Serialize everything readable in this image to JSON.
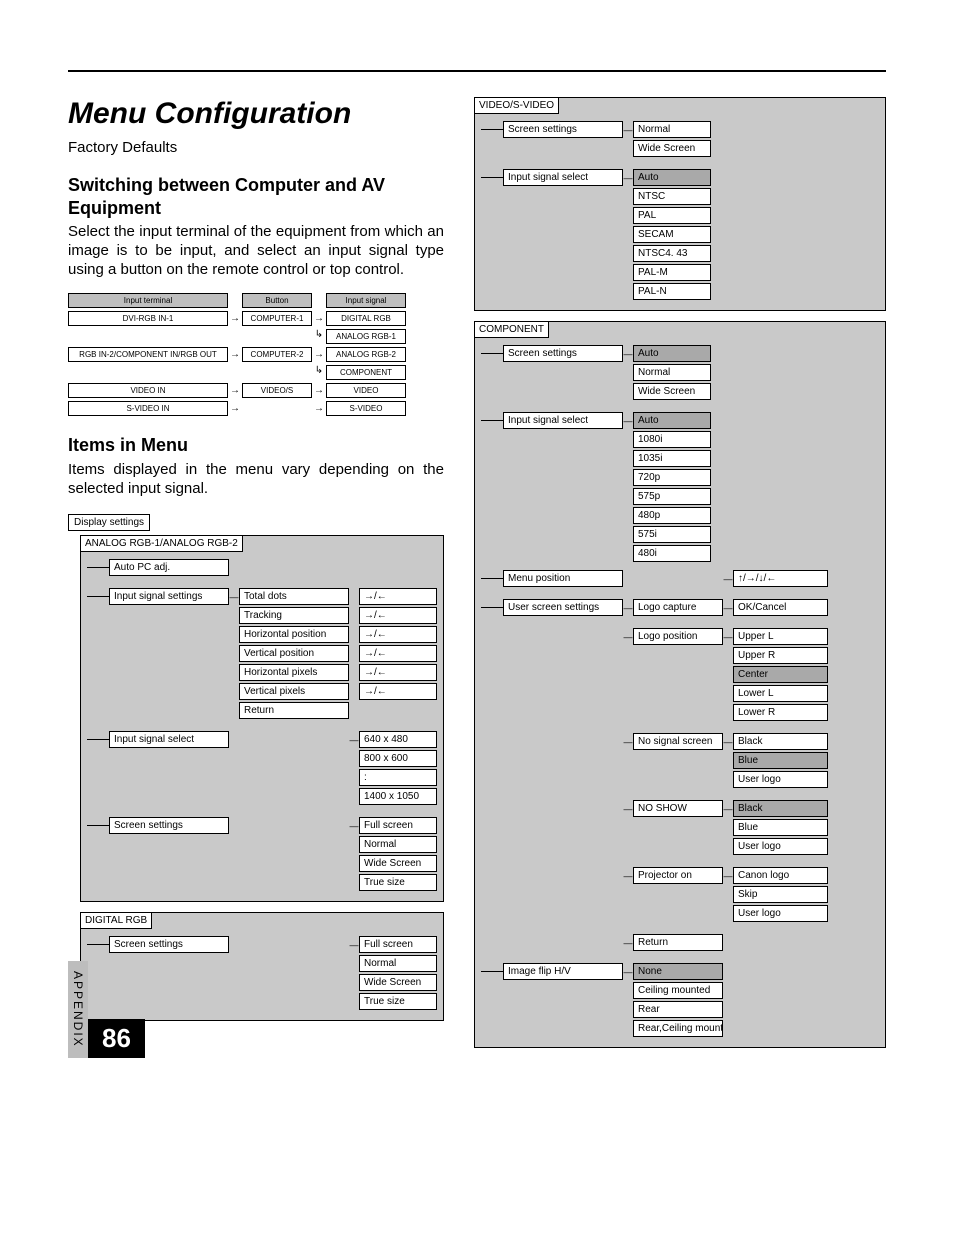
{
  "page": {
    "title": "Menu Configuration",
    "factory": "Factory Defaults",
    "switch_heading": "Switching between Computer and AV Equipment",
    "switch_body": "Select the input terminal of the equipment from which an image is to be input, and select an input signal type using a button on the remote control or top control.",
    "items_heading": "Items in Menu",
    "items_body": "Items displayed in the menu vary depending on the selected input signal.",
    "appendix": "APPENDIX",
    "number": "86"
  },
  "flow": {
    "headers": [
      "Input terminal",
      "Button",
      "Input signal"
    ],
    "rows": [
      {
        "term": "DVI-RGB IN-1",
        "btn": "COMPUTER-1",
        "sig": [
          "DIGITAL RGB",
          "ANALOG RGB-1"
        ]
      },
      {
        "term": "RGB IN-2/COMPONENT IN/RGB OUT",
        "btn": "COMPUTER-2",
        "sig": [
          "ANALOG RGB-2",
          "COMPONENT"
        ]
      },
      {
        "term": "VIDEO IN",
        "btn": "VIDEO/S",
        "sig": [
          "VIDEO"
        ]
      },
      {
        "term": "S-VIDEO IN",
        "btn": "",
        "sig": [
          "S-VIDEO"
        ]
      }
    ]
  },
  "display_settings_root": "Display settings",
  "panels": {
    "analog": {
      "title": "ANALOG RGB-1/ANALOG RGB-2",
      "auto_pc": "Auto PC adj.",
      "input_signal_settings": {
        "label": "Input signal settings",
        "items": [
          "Total dots",
          "Tracking",
          "Horizontal position",
          "Vertical position",
          "Horizontal pixels",
          "Vertical pixels",
          "Return"
        ],
        "arrows": "→/←"
      },
      "input_signal_select": {
        "label": "Input signal select",
        "items": [
          "640 x 480",
          "800 x 600",
          ":",
          "1400 x 1050"
        ]
      },
      "screen": {
        "label": "Screen settings",
        "items": [
          "Full screen",
          "Normal",
          "Wide Screen",
          "True size"
        ]
      }
    },
    "digital": {
      "title": "DIGITAL RGB",
      "screen": {
        "label": "Screen settings",
        "items": [
          "Full screen",
          "Normal",
          "Wide Screen",
          "True size"
        ]
      }
    },
    "video": {
      "title": "VIDEO/S-VIDEO",
      "screen": {
        "label": "Screen settings",
        "items": [
          "Normal",
          "Wide Screen"
        ]
      },
      "sig": {
        "label": "Input signal select",
        "items": [
          "Auto",
          "NTSC",
          "PAL",
          "SECAM",
          "NTSC4. 43",
          "PAL-M",
          "PAL-N"
        ]
      }
    },
    "component": {
      "title": "COMPONENT",
      "screen": {
        "label": "Screen settings",
        "items": [
          "Auto",
          "Normal",
          "Wide Screen"
        ]
      },
      "sig": {
        "label": "Input signal select",
        "items": [
          "Auto",
          "1080i",
          "1035i",
          "720p",
          "575p",
          "480p",
          "575i",
          "480i"
        ]
      },
      "menu_pos": {
        "label": "Menu position",
        "value": "↑/→/↓/←"
      },
      "user_screen": {
        "label": "User screen settings",
        "groups": [
          {
            "label": "Logo capture",
            "items": [
              "OK/Cancel"
            ]
          },
          {
            "label": "Logo position",
            "items": [
              "Upper L",
              "Upper R",
              "Center",
              "Lower L",
              "Lower R"
            ],
            "shaded": [
              "Center"
            ]
          },
          {
            "label": "No signal screen",
            "items": [
              "Black",
              "Blue",
              "User logo"
            ],
            "shaded": [
              "Blue"
            ]
          },
          {
            "label": "NO SHOW",
            "items": [
              "Black",
              "Blue",
              "User logo"
            ],
            "shaded": [
              "Black"
            ]
          },
          {
            "label": "Projector on",
            "items": [
              "Canon logo",
              "Skip",
              "User logo"
            ]
          },
          {
            "label": "Return",
            "items": []
          }
        ]
      },
      "image_flip": {
        "label": "Image flip H/V",
        "items": [
          "None",
          "Ceiling mounted",
          "Rear",
          "Rear,Ceiling mounted"
        ]
      }
    }
  }
}
